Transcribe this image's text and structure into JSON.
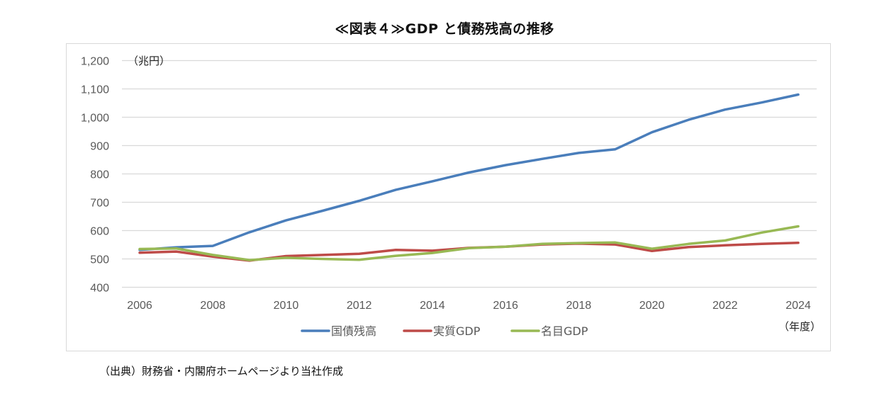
{
  "chart_data": {
    "type": "line",
    "title": "≪図表４≫GDP と債務残高の推移",
    "ylabel": "（兆円）",
    "xlabel": "（年度）",
    "ylim": [
      400,
      1200
    ],
    "yticks": [
      400,
      500,
      600,
      700,
      800,
      900,
      1000,
      1100,
      1200
    ],
    "ytick_labels": [
      "400",
      "500",
      "600",
      "700",
      "800",
      "900",
      "1,000",
      "1,100",
      "1,200"
    ],
    "xlim": [
      2006,
      2024
    ],
    "xtick_labels": [
      "2006",
      "2008",
      "2010",
      "2012",
      "2014",
      "2016",
      "2018",
      "2020",
      "2022",
      "2024"
    ],
    "grid": true,
    "legend_position": "bottom",
    "x": [
      2006,
      2007,
      2008,
      2009,
      2010,
      2011,
      2012,
      2013,
      2014,
      2015,
      2016,
      2017,
      2018,
      2019,
      2020,
      2021,
      2022,
      2023,
      2024
    ],
    "series": [
      {
        "name": "国債残高",
        "color": "#4a7ebb",
        "values": [
          532,
          541,
          546,
          594,
          636,
          670,
          705,
          744,
          774,
          805,
          831,
          853,
          874,
          887,
          947,
          991,
          1027,
          1052,
          1080
        ]
      },
      {
        "name": "実質GDP",
        "color": "#be4b48",
        "values": [
          522,
          526,
          508,
          494,
          510,
          514,
          518,
          532,
          529,
          539,
          543,
          551,
          554,
          551,
          528,
          542,
          548,
          553,
          557
        ]
      },
      {
        "name": "名目GDP",
        "color": "#98b954",
        "values": [
          535,
          537,
          514,
          496,
          504,
          500,
          497,
          511,
          521,
          538,
          543,
          553,
          556,
          558,
          536,
          553,
          565,
          593,
          615
        ]
      }
    ]
  },
  "source_note": "（出典）財務省・内閣府ホームページより当社作成"
}
